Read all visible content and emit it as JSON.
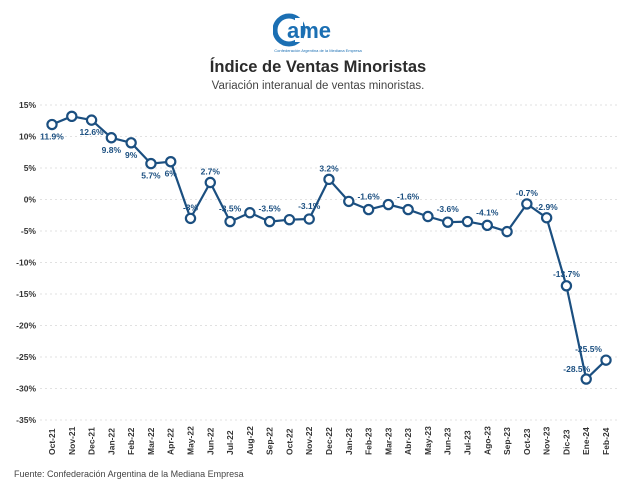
{
  "logo": {
    "text": "ame",
    "tagline": "Confederación Argentina de la Mediana Empresa",
    "color": "#1b6fb3"
  },
  "header": {
    "title": "Índice de Ventas Minoristas",
    "subtitle": "Variación interanual de ventas minoristas."
  },
  "footer": {
    "source": "Fuente: Confederación Argentina de la Mediana Empresa"
  },
  "chart_data": {
    "type": "line",
    "x": [
      "Oct-21",
      "Nov-21",
      "Dec-21",
      "Jan-22",
      "Feb-22",
      "Mar-22",
      "Apr-22",
      "May-22",
      "Jun-22",
      "Jul-22",
      "Aug-22",
      "Sep-22",
      "Oct-22",
      "Nov-22",
      "Dec-22",
      "Jan-23",
      "Feb-23",
      "Mar-23",
      "Abr-23",
      "May-23",
      "Jun-23",
      "Jul-23",
      "Ago-23",
      "Sep-23",
      "Oct-23",
      "Nov-23",
      "Dic-23",
      "Ene-24",
      "Feb-24"
    ],
    "values": [
      11.9,
      13.2,
      12.6,
      9.8,
      9.0,
      5.7,
      6.0,
      -3.0,
      2.7,
      -3.5,
      -2.1,
      -3.5,
      -3.2,
      -3.1,
      3.2,
      -0.3,
      -1.6,
      -0.8,
      -1.6,
      -2.7,
      -3.6,
      -3.5,
      -4.1,
      -5.1,
      -0.7,
      -2.9,
      -13.7,
      -28.5,
      -25.5
    ],
    "data_labels": [
      {
        "index": 0,
        "text": "11.9%"
      },
      {
        "index": 2,
        "text": "12.6%"
      },
      {
        "index": 3,
        "text": "9.8%"
      },
      {
        "index": 4,
        "text": "9%"
      },
      {
        "index": 5,
        "text": "5.7%"
      },
      {
        "index": 6,
        "text": "6%"
      },
      {
        "index": 7,
        "text": "-3%"
      },
      {
        "index": 8,
        "text": "2.7%"
      },
      {
        "index": 9,
        "text": "-3.5%"
      },
      {
        "index": 11,
        "text": "-3.5%"
      },
      {
        "index": 13,
        "text": "-3.1%"
      },
      {
        "index": 14,
        "text": "3.2%"
      },
      {
        "index": 16,
        "text": "-1.6%"
      },
      {
        "index": 18,
        "text": "-1.6%"
      },
      {
        "index": 20,
        "text": "-3.6%"
      },
      {
        "index": 22,
        "text": "-4.1%"
      },
      {
        "index": 24,
        "text": "-0.7%"
      },
      {
        "index": 25,
        "text": "-2.9%"
      },
      {
        "index": 26,
        "text": "-13.7%"
      },
      {
        "index": 27,
        "text": "-28.5%"
      },
      {
        "index": 28,
        "text": "-25.5%"
      }
    ],
    "y_ticks": [
      15,
      10,
      5,
      0,
      -5,
      -10,
      -15,
      -20,
      -25,
      -30,
      -35
    ],
    "ylim": [
      -35,
      15
    ],
    "ytick_suffix": "%",
    "grid": true,
    "line_color": "#1b4f80"
  }
}
